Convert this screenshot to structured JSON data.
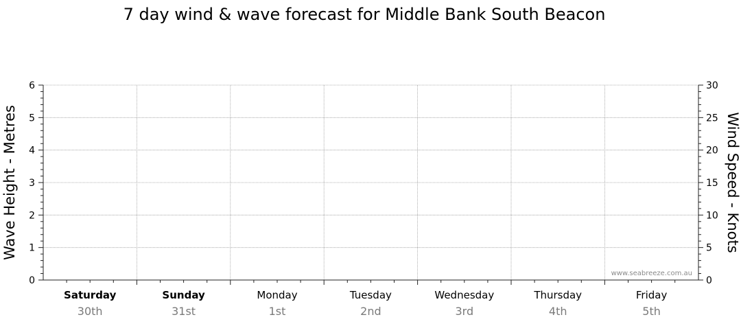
{
  "chart_data": {
    "type": "line",
    "title": "7 day wind & wave forecast for Middle Bank South Beacon",
    "ylabel_left": "Wave Height - Metres",
    "ylabel_right": "Wind Speed - Knots",
    "ylim_left": [
      0,
      6
    ],
    "ylim_right": [
      0,
      30
    ],
    "left_ticks": [
      "0",
      "1",
      "2",
      "3",
      "4",
      "5",
      "6"
    ],
    "right_ticks": [
      "0",
      "5",
      "10",
      "15",
      "20",
      "25",
      "30"
    ],
    "grid": true,
    "days": [
      {
        "name": "Saturday",
        "date": "30th",
        "bold": true
      },
      {
        "name": "Sunday",
        "date": "31st",
        "bold": true
      },
      {
        "name": "Monday",
        "date": "1st",
        "bold": false
      },
      {
        "name": "Tuesday",
        "date": "2nd",
        "bold": false
      },
      {
        "name": "Wednesday",
        "date": "3rd",
        "bold": false
      },
      {
        "name": "Thursday",
        "date": "4th",
        "bold": false
      },
      {
        "name": "Friday",
        "date": "5th",
        "bold": false
      }
    ],
    "series": [],
    "credit": "www.seabreeze.com.au"
  }
}
